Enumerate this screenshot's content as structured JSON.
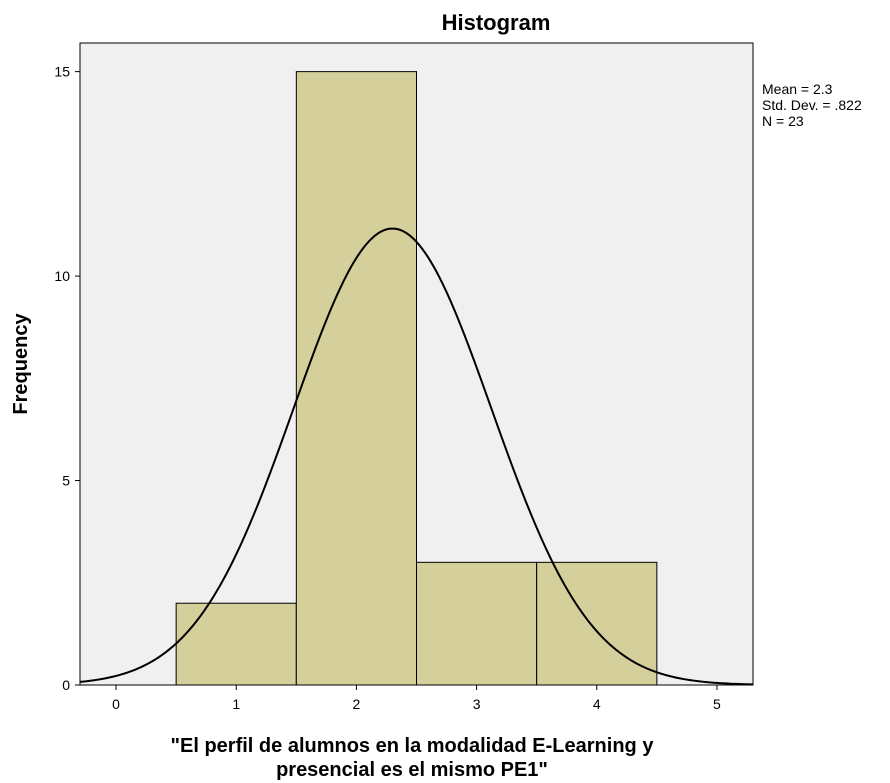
{
  "chart_data": {
    "type": "bar",
    "title": "Histogram",
    "xlabel_lines": [
      "\"El perfil de alumnos en la modalidad E-Learning y",
      "presencial es el mismo PE1\""
    ],
    "ylabel": "Frequency",
    "xlim": [
      -0.3,
      5.3
    ],
    "ylim": [
      0,
      15.7
    ],
    "x_ticks": [
      0,
      1,
      2,
      3,
      4,
      5
    ],
    "y_ticks": [
      0,
      5,
      10,
      15
    ],
    "bins": [
      {
        "x0": 0.5,
        "x1": 1.5,
        "count": 2
      },
      {
        "x0": 1.5,
        "x1": 2.5,
        "count": 15
      },
      {
        "x0": 2.5,
        "x1": 3.5,
        "count": 3
      },
      {
        "x0": 3.5,
        "x1": 4.5,
        "count": 3
      }
    ],
    "normal_curve": {
      "mean": 2.3,
      "sd": 0.822,
      "n": 23,
      "bin_width": 1
    },
    "stats_lines": [
      "Mean = 2.3",
      "Std. Dev. = .822",
      "N = 23"
    ],
    "colors": {
      "plot_background": "#f0f0f0",
      "bar_fill": "#d4cf9b",
      "bar_stroke": "#000000",
      "curve": "#000000"
    },
    "grid": false,
    "legend": "none"
  }
}
